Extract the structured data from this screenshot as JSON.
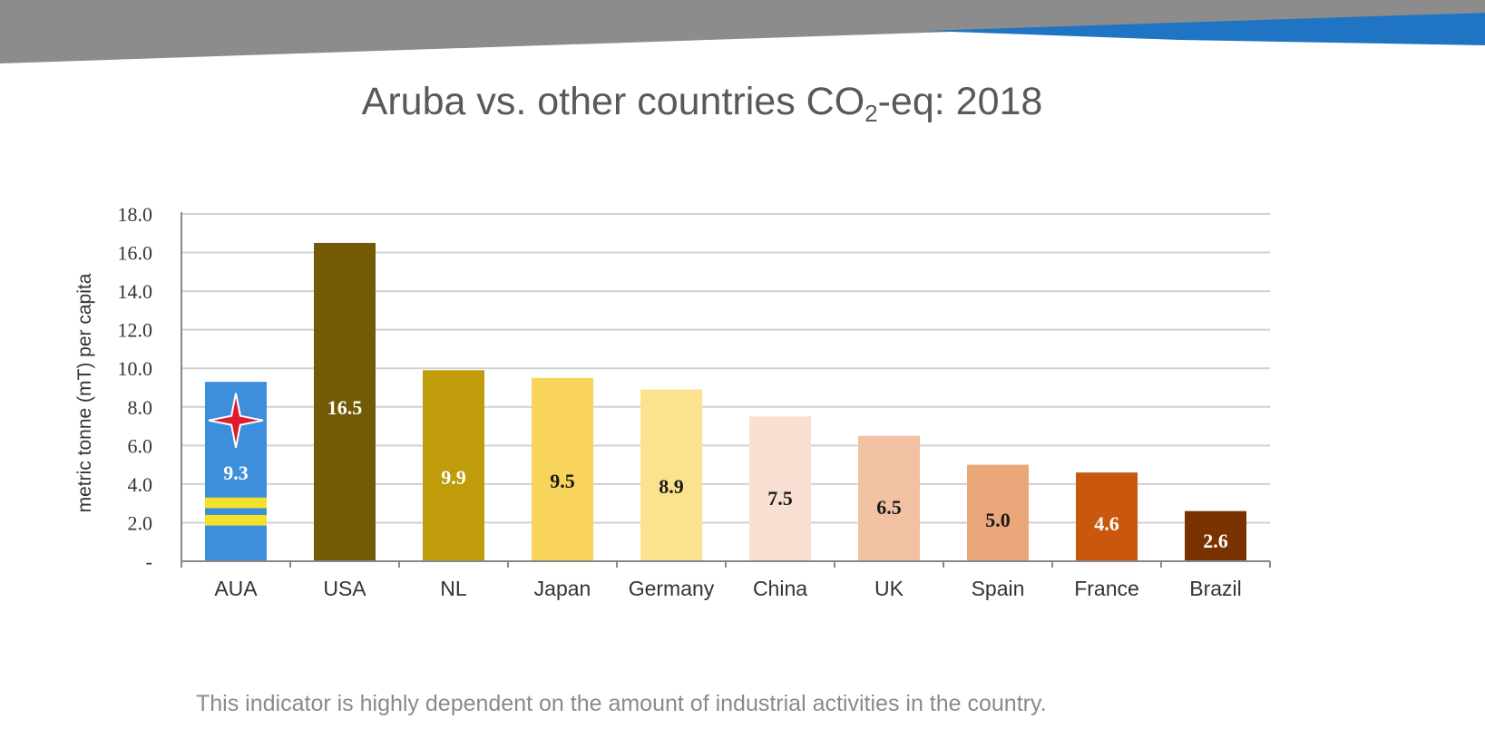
{
  "slide": {
    "title_main": "Aruba vs. other countries CO",
    "title_sub": "2",
    "title_rest": "-eq: 2018",
    "footnote": "This indicator is highly dependent on the amount of industrial activities in the country."
  },
  "colors": {
    "banner_gray": "#8c8c8c",
    "banner_blue": "#1f74c4",
    "gridline": "#d0d0d0",
    "aruba_blue": "#3d8fdb",
    "aruba_yellow": "#f2e22a",
    "aruba_star": "#e01b2c"
  },
  "chart_data": {
    "type": "bar",
    "title": "",
    "xlabel": "",
    "ylabel": "metric tonne (mT) per capita",
    "ylim": [
      0,
      18
    ],
    "yticks": [
      "-",
      "2.0",
      "4.0",
      "6.0",
      "8.0",
      "10.0",
      "12.0",
      "14.0",
      "16.0",
      "18.0"
    ],
    "grid": true,
    "categories": [
      "AUA",
      "USA",
      "NL",
      "Japan",
      "Germany",
      "China",
      "UK",
      "Spain",
      "France",
      "Brazil"
    ],
    "values": [
      9.3,
      16.5,
      9.9,
      9.5,
      8.9,
      7.5,
      6.5,
      5.0,
      4.6,
      2.6
    ],
    "value_labels": [
      "9.3",
      "16.5",
      "9.9",
      "9.5",
      "8.9",
      "7.5",
      "6.5",
      "5.0",
      "4.6",
      "2.6"
    ],
    "bar_colors": [
      "#3d8fdb",
      "#735b06",
      "#c09b0a",
      "#f8d55a",
      "#fbe38e",
      "#f9dfd1",
      "#f2c0a2",
      "#e9a77a",
      "#c9580e",
      "#7a3300"
    ],
    "label_colors": [
      "#ffffff",
      "#ffffff",
      "#ffffff",
      "#1a1a1a",
      "#1a1a1a",
      "#1a1a1a",
      "#1a1a1a",
      "#1a1a1a",
      "#ffffff",
      "#ffffff"
    ],
    "label_y_fraction": [
      0.55,
      0.55,
      0.55,
      0.55,
      0.55,
      0.55,
      0.55,
      0.55,
      0.55,
      0.55
    ]
  }
}
